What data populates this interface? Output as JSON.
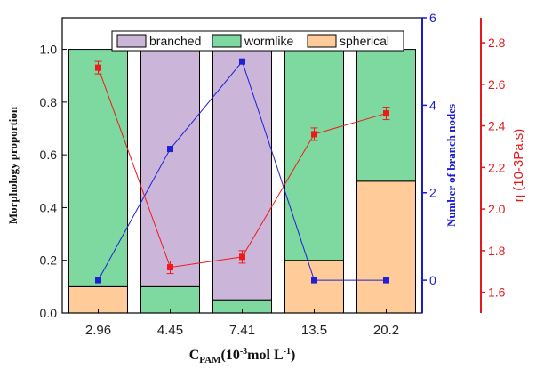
{
  "chart_data": {
    "type": "bar",
    "categories": [
      "2.96",
      "4.45",
      "7.41",
      "13.5",
      "20.2"
    ],
    "bar_series": [
      {
        "name": "spherical",
        "color": "#ffcc99",
        "values": [
          0.1,
          0.0,
          0.0,
          0.2,
          0.5
        ]
      },
      {
        "name": "wormlike",
        "color": "#7dd9a0",
        "values": [
          0.9,
          0.1,
          0.05,
          0.8,
          0.5
        ]
      },
      {
        "name": "branched",
        "color": "#cbb5d9",
        "values": [
          0.0,
          0.9,
          0.95,
          0.0,
          0.0
        ]
      }
    ],
    "legend_order": [
      "branched",
      "wormlike",
      "spherical"
    ],
    "branch_nodes": {
      "color": "#1f1fd6",
      "values": [
        0,
        3,
        5,
        0,
        0
      ]
    },
    "viscosity": {
      "color": "#f01919",
      "values": [
        2.68,
        1.72,
        1.77,
        2.36,
        2.46
      ],
      "errors": [
        0.03,
        0.03,
        0.03,
        0.03,
        0.03
      ]
    },
    "left_axis": {
      "label": "Morphology proportion",
      "range": [
        0.0,
        1.12
      ],
      "ticks": [
        "0.0",
        "0.2",
        "0.4",
        "0.6",
        "0.8",
        "1.0"
      ],
      "color": "#000000"
    },
    "right_axis_1": {
      "label": "Number of branch nodes",
      "range": [
        -0.75,
        6.0
      ],
      "ticks": [
        "0",
        "2",
        "4",
        "6"
      ],
      "color": "#1a1ad6"
    },
    "right_axis_2": {
      "label": "η (10-3Pa.s)",
      "range": [
        1.5,
        2.92
      ],
      "ticks": [
        "1.6",
        "1.8",
        "2.0",
        "2.2",
        "2.4",
        "2.6",
        "2.8"
      ],
      "color": "#e8171b"
    },
    "x_axis": {
      "label_main": "C",
      "label_sub": "PAM",
      "label_unit_pre": "(10",
      "label_unit_sup": "-3",
      "label_unit_post": "mol L",
      "label_unit_sup2": "-1",
      "label_unit_end": ")"
    }
  }
}
